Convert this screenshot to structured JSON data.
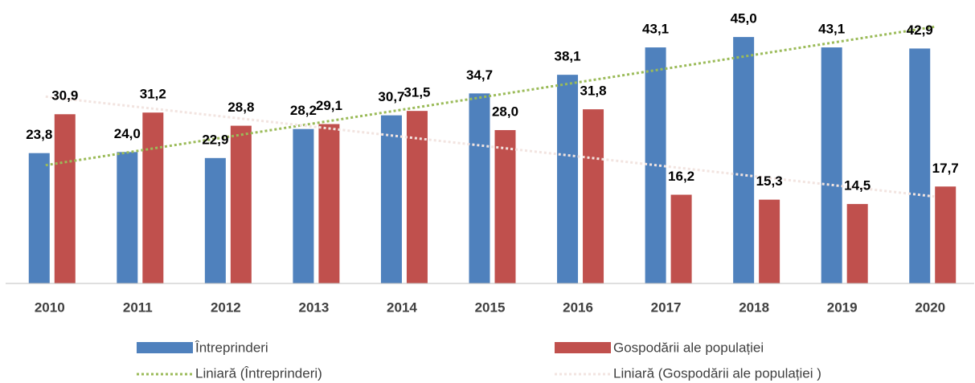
{
  "chart_data": {
    "type": "bar",
    "categories": [
      "2010",
      "2011",
      "2012",
      "2013",
      "2014",
      "2015",
      "2016",
      "2017",
      "2018",
      "2019",
      "2020"
    ],
    "series": [
      {
        "name": "Întreprinderi",
        "color": "#4f81bd",
        "values": [
          23.8,
          24.0,
          22.9,
          28.2,
          30.7,
          34.7,
          38.1,
          43.1,
          45.0,
          43.1,
          42.9
        ],
        "value_labels": [
          "23,8",
          "24,0",
          "22,9",
          "28,2",
          "30,7",
          "34,7",
          "38,1",
          "43,1",
          "45,0",
          "43,1",
          "42,9"
        ]
      },
      {
        "name": "Gospodării ale populației",
        "color": "#c0504d",
        "values": [
          30.9,
          31.2,
          28.8,
          29.1,
          31.5,
          28.0,
          31.8,
          16.2,
          15.3,
          14.5,
          17.7
        ],
        "value_labels": [
          "30,9",
          "31,2",
          "28,8",
          "29,1",
          "31,5",
          "28,0",
          "31,8",
          "16,2",
          "15,3",
          "14,5",
          "17,7"
        ]
      }
    ],
    "trendlines": [
      {
        "name": "Liniară (Întreprinderi)",
        "color": "#9bbb59",
        "series": 0
      },
      {
        "name": "Liniară (Gospodării ale populației )",
        "color": "#f2e4e0",
        "series": 1
      }
    ],
    "ylim": [
      0,
      50
    ]
  }
}
